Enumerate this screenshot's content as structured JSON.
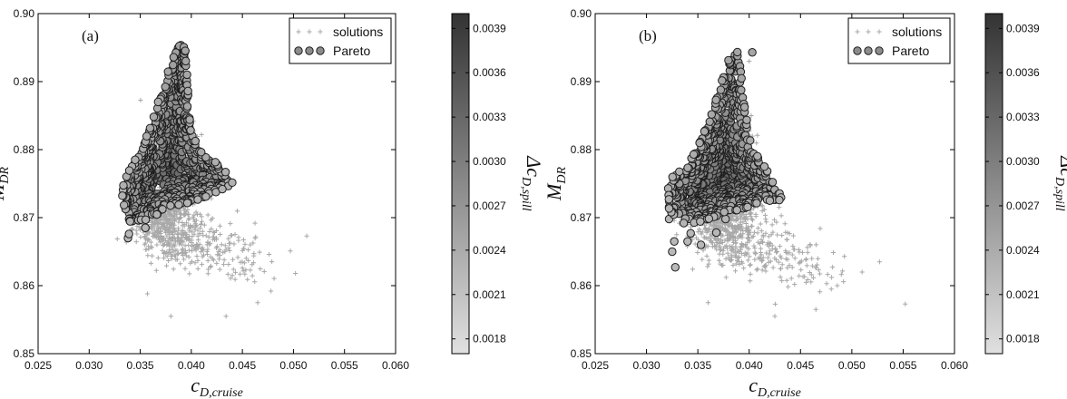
{
  "chart_data": [
    {
      "type": "scatter",
      "panel_label": "(a)",
      "xlabel": "c",
      "xlabel_sub": "D,cruise",
      "ylabel": "M",
      "ylabel_sub": "DR",
      "xlim": [
        0.025,
        0.06
      ],
      "ylim": [
        0.85,
        0.9
      ],
      "xticks": [
        "0.025",
        "0.030",
        "0.035",
        "0.040",
        "0.045",
        "0.050",
        "0.055",
        "0.060"
      ],
      "yticks": [
        "0.85",
        "0.86",
        "0.87",
        "0.88",
        "0.89",
        "0.90"
      ],
      "legend": {
        "position": "top-right",
        "entries": [
          "solutions",
          "Pareto"
        ]
      },
      "colorbar": {
        "label": "Δc",
        "label_sub": "D,spill",
        "range": [
          0.0017,
          0.004
        ],
        "ticks": [
          "0.0018",
          "0.0021",
          "0.0024",
          "0.0027",
          "0.0030",
          "0.0033",
          "0.0036",
          "0.0039"
        ],
        "cmap_low": "#e0e0e0",
        "cmap_high": "#333333"
      },
      "series": [
        {
          "name": "solutions",
          "marker": "plus",
          "color": "#a8a8a8",
          "clusters": [
            {
              "cx": 0.0375,
              "cy": 0.87,
              "sx": 0.003,
              "sy": 0.0045,
              "n": 500
            },
            {
              "cx": 0.0395,
              "cy": 0.8665,
              "sx": 0.0045,
              "sy": 0.0035,
              "n": 160
            },
            {
              "cx": 0.0445,
              "cy": 0.864,
              "sx": 0.0035,
              "sy": 0.004,
              "n": 70
            },
            {
              "cx": 0.0385,
              "cy": 0.88,
              "sx": 0.002,
              "sy": 0.005,
              "n": 130
            }
          ],
          "points": [
            [
              0.0513,
              0.8673
            ],
            [
              0.0497,
              0.8651
            ],
            [
              0.0502,
              0.8618
            ],
            [
              0.0478,
              0.8592
            ],
            [
              0.0465,
              0.8575
            ],
            [
              0.0434,
              0.8555
            ],
            [
              0.038,
              0.8555
            ],
            [
              0.0357,
              0.8588
            ],
            [
              0.041,
              0.8822
            ]
          ]
        },
        {
          "name": "Pareto",
          "marker": "circle",
          "color": "#707070",
          "region": [
            [
              0.0332,
              0.8737
            ],
            [
              0.0334,
              0.87
            ],
            [
              0.0341,
              0.8688
            ],
            [
              0.0352,
              0.8693
            ],
            [
              0.0362,
              0.87
            ],
            [
              0.0375,
              0.8713
            ],
            [
              0.0392,
              0.872
            ],
            [
              0.041,
              0.8727
            ],
            [
              0.0425,
              0.8738
            ],
            [
              0.0439,
              0.8748
            ],
            [
              0.0442,
              0.8757
            ],
            [
              0.0425,
              0.878
            ],
            [
              0.041,
              0.88
            ],
            [
              0.04,
              0.883
            ],
            [
              0.0397,
              0.888
            ],
            [
              0.0395,
              0.894
            ],
            [
              0.0392,
              0.8962
            ],
            [
              0.0385,
              0.895
            ],
            [
              0.0375,
              0.8905
            ],
            [
              0.0365,
              0.886
            ],
            [
              0.0355,
              0.8815
            ],
            [
              0.0343,
              0.878
            ],
            [
              0.0334,
              0.876
            ]
          ],
          "points": [
            [
              0.0338,
              0.867
            ],
            [
              0.0339,
              0.8676
            ],
            [
              0.0355,
              0.8685
            ],
            [
              0.0345,
              0.8785
            ]
          ],
          "n": 800
        }
      ]
    },
    {
      "type": "scatter",
      "panel_label": "(b)",
      "xlabel": "c",
      "xlabel_sub": "D,cruise",
      "ylabel": "M",
      "ylabel_sub": "DR",
      "xlim": [
        0.025,
        0.06
      ],
      "ylim": [
        0.85,
        0.9
      ],
      "xticks": [
        "0.025",
        "0.030",
        "0.035",
        "0.040",
        "0.045",
        "0.050",
        "0.055",
        "0.060"
      ],
      "yticks": [
        "0.85",
        "0.86",
        "0.87",
        "0.88",
        "0.89",
        "0.90"
      ],
      "legend": {
        "position": "top-right",
        "entries": [
          "solutions",
          "Pareto"
        ]
      },
      "colorbar": {
        "label": "Δc",
        "label_sub": "D,spill",
        "range": [
          0.0017,
          0.004
        ],
        "ticks": [
          "0.0018",
          "0.0021",
          "0.0024",
          "0.0027",
          "0.0030",
          "0.0033",
          "0.0036",
          "0.0039"
        ],
        "cmap_low": "#e0e0e0",
        "cmap_high": "#333333"
      },
      "series": [
        {
          "name": "solutions",
          "marker": "plus",
          "color": "#a8a8a8",
          "clusters": [
            {
              "cx": 0.0375,
              "cy": 0.8695,
              "sx": 0.003,
              "sy": 0.0045,
              "n": 500
            },
            {
              "cx": 0.04,
              "cy": 0.8655,
              "sx": 0.0045,
              "sy": 0.004,
              "n": 160
            },
            {
              "cx": 0.045,
              "cy": 0.863,
              "sx": 0.004,
              "sy": 0.004,
              "n": 70
            },
            {
              "cx": 0.0385,
              "cy": 0.88,
              "sx": 0.002,
              "sy": 0.005,
              "n": 130
            }
          ],
          "points": [
            [
              0.0552,
              0.8573
            ],
            [
              0.0527,
              0.8635
            ],
            [
              0.051,
              0.862
            ],
            [
              0.0465,
              0.8565
            ],
            [
              0.048,
              0.8595
            ],
            [
              0.0425,
              0.8555
            ],
            [
              0.036,
              0.8575
            ],
            [
              0.0402,
              0.885
            ],
            [
              0.04,
              0.893
            ]
          ]
        },
        {
          "name": "Pareto",
          "marker": "circle",
          "color": "#707070",
          "region": [
            [
              0.032,
              0.8745
            ],
            [
              0.0322,
              0.871
            ],
            [
              0.033,
              0.8695
            ],
            [
              0.034,
              0.869
            ],
            [
              0.0355,
              0.8695
            ],
            [
              0.0375,
              0.8705
            ],
            [
              0.0395,
              0.8713
            ],
            [
              0.0415,
              0.8725
            ],
            [
              0.0428,
              0.8722
            ],
            [
              0.0432,
              0.873
            ],
            [
              0.0425,
              0.8755
            ],
            [
              0.041,
              0.8785
            ],
            [
              0.04,
              0.882
            ],
            [
              0.0395,
              0.887
            ],
            [
              0.0392,
              0.893
            ],
            [
              0.0388,
              0.8948
            ],
            [
              0.038,
              0.8935
            ],
            [
              0.0372,
              0.8895
            ],
            [
              0.0362,
              0.885
            ],
            [
              0.035,
              0.8805
            ],
            [
              0.0338,
              0.8775
            ],
            [
              0.0325,
              0.876
            ]
          ],
          "points": [
            [
              0.0328,
              0.8627
            ],
            [
              0.0325,
              0.865
            ],
            [
              0.0327,
              0.8665
            ],
            [
              0.034,
              0.8665
            ],
            [
              0.0353,
              0.866
            ],
            [
              0.0343,
              0.8677
            ],
            [
              0.0368,
              0.8678
            ],
            [
              0.0322,
              0.8698
            ],
            [
              0.0377,
              0.8698
            ],
            [
              0.0403,
              0.8943
            ]
          ],
          "n": 800
        }
      ]
    }
  ]
}
